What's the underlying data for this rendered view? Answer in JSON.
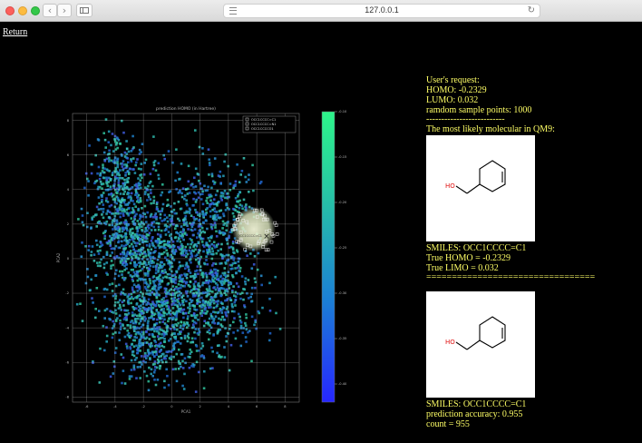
{
  "browser": {
    "url": "127.0.0.1",
    "back_glyph": "‹",
    "forward_glyph": "›",
    "reload_glyph": "↻"
  },
  "return_link": "Return",
  "plot": {
    "title": "prediction HOMO (in Hartree)",
    "xlabel": "PCA1",
    "ylabel": "PCA2",
    "legend": [
      "OCC1CCCC=C1",
      "OCC1CCCC=N1",
      "OCC1CCCCO1"
    ],
    "marker_label": "OCC1CCCC=C1"
  },
  "chart_data": {
    "type": "scatter",
    "title": "prediction HOMO (in Hartree)",
    "xlabel": "PCA1",
    "ylabel": "PCA2",
    "xlim": [
      -7,
      9
    ],
    "ylim": [
      -8.3,
      8.4
    ],
    "x_ticks": [
      "-6",
      "-4",
      "-2",
      "0",
      "2",
      "4",
      "6",
      "8"
    ],
    "y_ticks": [
      "8",
      "6",
      "4",
      "2",
      "0",
      "-2",
      "-4",
      "-6",
      "-8"
    ],
    "grid": true,
    "legend_position": "top-right",
    "colorbar": {
      "ticks": [
        "-0.10",
        "-0.15",
        "-0.20",
        "-0.25",
        "-0.30",
        "-0.35",
        "-0.40"
      ],
      "range": [
        -0.42,
        -0.1
      ],
      "colors": [
        "#2626ff",
        "#1b7fd6",
        "#27c2a6",
        "#2df58a"
      ]
    },
    "highlight": {
      "label": "OCC1CCCC=C1",
      "x": 5.8,
      "y": 1.7
    }
  },
  "panel": {
    "request_header": "User's request:",
    "homo": "HOMO: -0.2329",
    "lumo": "LUMO: 0.032",
    "sample_points": "ramdom sample points: 1000",
    "divider_short": "--------------------------",
    "most_likely": "The most likely molecular in QM9:",
    "smiles1": "SMILES: OCC1CCCC=C1",
    "true_homo": "True HOMO = -0.2329",
    "true_lumo": "True LIMO = 0.032",
    "divider_long": "=================================",
    "smiles2": "SMILES: OCC1CCCC=C1",
    "accuracy": "prediction accuracy: 0.955",
    "count": "count = 955",
    "molecule_label": "HO"
  }
}
